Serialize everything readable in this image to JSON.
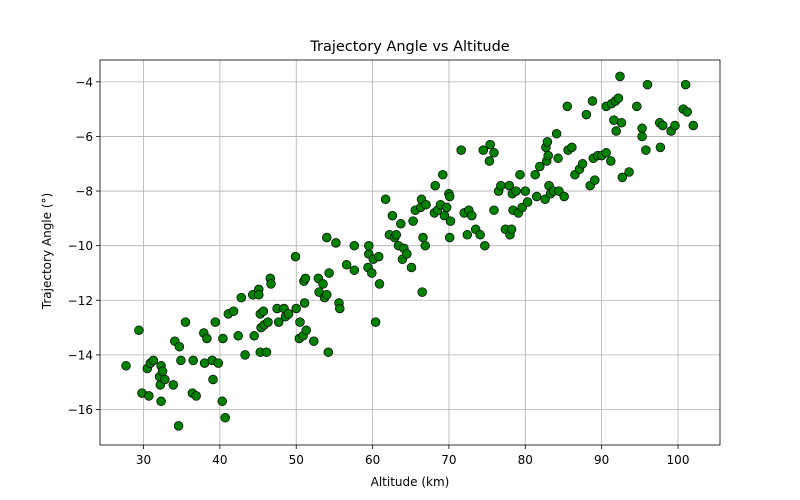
{
  "chart_data": {
    "type": "scatter",
    "title": "Trajectory Angle vs Altitude",
    "xlabel": "Altitude (km)",
    "ylabel": "Trajectory Angle (°)",
    "xlim": [
      24.3,
      105.5
    ],
    "ylim": [
      -17.3,
      -3.2
    ],
    "xticks": [
      30,
      40,
      50,
      60,
      70,
      80,
      90,
      100
    ],
    "yticks": [
      -16,
      -14,
      -12,
      -10,
      -8,
      -6,
      -4
    ],
    "grid": true,
    "marker_color": "#008000",
    "marker_edge_color": "#000000",
    "series": [
      {
        "points": [
          [
            27.7,
            -14.4
          ],
          [
            29.4,
            -13.1
          ],
          [
            29.8,
            -15.4
          ],
          [
            30.5,
            -14.5
          ],
          [
            30.7,
            -15.5
          ],
          [
            30.9,
            -14.3
          ],
          [
            31.3,
            -14.2
          ],
          [
            32.1,
            -14.8
          ],
          [
            32.2,
            -15.1
          ],
          [
            32.3,
            -14.4
          ],
          [
            32.3,
            -15.7
          ],
          [
            32.5,
            -14.6
          ],
          [
            32.8,
            -14.9
          ],
          [
            33.9,
            -15.1
          ],
          [
            34.1,
            -13.5
          ],
          [
            34.6,
            -16.6
          ],
          [
            34.7,
            -13.7
          ],
          [
            34.9,
            -14.2
          ],
          [
            35.5,
            -12.8
          ],
          [
            36.4,
            -15.4
          ],
          [
            36.5,
            -14.2
          ],
          [
            36.9,
            -15.5
          ],
          [
            37.9,
            -13.2
          ],
          [
            38.0,
            -14.3
          ],
          [
            38.3,
            -13.4
          ],
          [
            39.0,
            -14.2
          ],
          [
            39.1,
            -14.9
          ],
          [
            39.4,
            -12.8
          ],
          [
            39.8,
            -14.3
          ],
          [
            40.3,
            -15.7
          ],
          [
            40.4,
            -13.4
          ],
          [
            40.7,
            -16.3
          ],
          [
            41.1,
            -12.5
          ],
          [
            41.8,
            -12.4
          ],
          [
            42.4,
            -13.3
          ],
          [
            42.8,
            -11.9
          ],
          [
            43.3,
            -14.0
          ],
          [
            44.3,
            -11.8
          ],
          [
            44.5,
            -13.3
          ],
          [
            45.1,
            -11.6
          ],
          [
            45.1,
            -11.8
          ],
          [
            45.3,
            -13.9
          ],
          [
            45.3,
            -12.5
          ],
          [
            45.4,
            -13.0
          ],
          [
            45.7,
            -12.4
          ],
          [
            45.8,
            -12.9
          ],
          [
            46.1,
            -13.9
          ],
          [
            46.3,
            -12.8
          ],
          [
            46.6,
            -11.2
          ],
          [
            46.7,
            -11.4
          ],
          [
            47.5,
            -12.3
          ],
          [
            47.7,
            -12.8
          ],
          [
            48.4,
            -12.3
          ],
          [
            48.6,
            -12.6
          ],
          [
            49.0,
            -12.5
          ],
          [
            49.9,
            -10.4
          ],
          [
            50.0,
            -12.3
          ],
          [
            50.4,
            -13.4
          ],
          [
            50.5,
            -12.8
          ],
          [
            50.9,
            -13.3
          ],
          [
            51.0,
            -11.3
          ],
          [
            51.1,
            -12.1
          ],
          [
            51.2,
            -11.2
          ],
          [
            51.3,
            -13.1
          ],
          [
            52.3,
            -13.5
          ],
          [
            52.9,
            -11.2
          ],
          [
            53.0,
            -11.7
          ],
          [
            53.5,
            -11.4
          ],
          [
            53.7,
            -11.9
          ],
          [
            54.0,
            -11.8
          ],
          [
            54.0,
            -9.7
          ],
          [
            54.2,
            -13.9
          ],
          [
            54.3,
            -11.0
          ],
          [
            55.2,
            -9.9
          ],
          [
            55.6,
            -12.1
          ],
          [
            55.7,
            -12.3
          ],
          [
            56.6,
            -10.7
          ],
          [
            57.6,
            -10.0
          ],
          [
            57.6,
            -10.9
          ],
          [
            59.4,
            -10.8
          ],
          [
            59.5,
            -10.3
          ],
          [
            59.5,
            -10.0
          ],
          [
            59.9,
            -11.0
          ],
          [
            60.1,
            -10.5
          ],
          [
            60.4,
            -12.8
          ],
          [
            60.8,
            -10.4
          ],
          [
            60.9,
            -11.4
          ],
          [
            61.7,
            -8.3
          ],
          [
            62.2,
            -9.6
          ],
          [
            62.6,
            -8.9
          ],
          [
            62.9,
            -9.7
          ],
          [
            63.1,
            -9.6
          ],
          [
            63.4,
            -10.0
          ],
          [
            63.7,
            -9.2
          ],
          [
            63.9,
            -10.5
          ],
          [
            64.1,
            -10.1
          ],
          [
            64.5,
            -10.3
          ],
          [
            65.1,
            -10.8
          ],
          [
            65.3,
            -9.1
          ],
          [
            65.6,
            -8.7
          ],
          [
            66.3,
            -8.6
          ],
          [
            66.4,
            -8.3
          ],
          [
            66.5,
            -11.7
          ],
          [
            66.6,
            -9.7
          ],
          [
            66.9,
            -10.0
          ],
          [
            67.0,
            -8.5
          ],
          [
            68.1,
            -8.8
          ],
          [
            68.2,
            -7.8
          ],
          [
            68.5,
            -8.7
          ],
          [
            68.9,
            -8.5
          ],
          [
            69.2,
            -7.4
          ],
          [
            69.4,
            -8.9
          ],
          [
            69.7,
            -8.6
          ],
          [
            70.0,
            -8.1
          ],
          [
            70.1,
            -8.2
          ],
          [
            70.1,
            -9.7
          ],
          [
            70.2,
            -9.1
          ],
          [
            71.6,
            -6.5
          ],
          [
            72.0,
            -8.8
          ],
          [
            72.4,
            -9.6
          ],
          [
            72.6,
            -8.7
          ],
          [
            73.0,
            -8.9
          ],
          [
            73.5,
            -9.4
          ],
          [
            74.1,
            -9.6
          ],
          [
            74.5,
            -6.5
          ],
          [
            74.7,
            -10.0
          ],
          [
            75.3,
            -6.9
          ],
          [
            75.4,
            -6.3
          ],
          [
            75.9,
            -6.6
          ],
          [
            75.9,
            -8.7
          ],
          [
            76.5,
            -8.0
          ],
          [
            76.8,
            -7.8
          ],
          [
            77.4,
            -9.4
          ],
          [
            77.9,
            -7.8
          ],
          [
            78.0,
            -9.6
          ],
          [
            78.2,
            -9.4
          ],
          [
            78.3,
            -8.1
          ],
          [
            78.4,
            -8.7
          ],
          [
            78.8,
            -8.0
          ],
          [
            79.1,
            -8.8
          ],
          [
            79.3,
            -7.4
          ],
          [
            79.6,
            -8.6
          ],
          [
            80.0,
            -8.0
          ],
          [
            80.3,
            -8.4
          ],
          [
            81.3,
            -7.4
          ],
          [
            81.5,
            -8.2
          ],
          [
            81.9,
            -7.1
          ],
          [
            82.6,
            -8.3
          ],
          [
            82.7,
            -6.4
          ],
          [
            82.8,
            -6.9
          ],
          [
            82.9,
            -6.2
          ],
          [
            83.0,
            -6.7
          ],
          [
            83.1,
            -7.8
          ],
          [
            83.3,
            -8.1
          ],
          [
            83.7,
            -8.0
          ],
          [
            84.1,
            -5.9
          ],
          [
            84.3,
            -6.8
          ],
          [
            84.4,
            -8.0
          ],
          [
            85.1,
            -8.2
          ],
          [
            85.5,
            -4.9
          ],
          [
            85.6,
            -6.5
          ],
          [
            86.1,
            -6.4
          ],
          [
            86.5,
            -7.4
          ],
          [
            87.1,
            -7.2
          ],
          [
            87.5,
            -7.0
          ],
          [
            88.0,
            -5.2
          ],
          [
            88.5,
            -7.8
          ],
          [
            88.8,
            -4.7
          ],
          [
            88.9,
            -6.8
          ],
          [
            89.1,
            -7.6
          ],
          [
            89.5,
            -6.7
          ],
          [
            90.0,
            -6.7
          ],
          [
            90.6,
            -6.6
          ],
          [
            90.6,
            -4.9
          ],
          [
            91.2,
            -6.9
          ],
          [
            91.3,
            -4.8
          ],
          [
            91.6,
            -5.4
          ],
          [
            91.8,
            -4.7
          ],
          [
            91.9,
            -5.8
          ],
          [
            92.2,
            -4.6
          ],
          [
            92.4,
            -3.8
          ],
          [
            92.6,
            -5.5
          ],
          [
            92.7,
            -7.5
          ],
          [
            93.6,
            -7.3
          ],
          [
            94.6,
            -4.9
          ],
          [
            95.3,
            -5.7
          ],
          [
            95.3,
            -6.0
          ],
          [
            95.8,
            -6.5
          ],
          [
            96.0,
            -4.1
          ],
          [
            97.6,
            -5.5
          ],
          [
            97.7,
            -6.4
          ],
          [
            98.0,
            -5.6
          ],
          [
            99.1,
            -5.8
          ],
          [
            99.6,
            -5.6
          ],
          [
            100.7,
            -5.0
          ],
          [
            101.0,
            -4.1
          ],
          [
            101.2,
            -5.1
          ],
          [
            102.0,
            -5.6
          ]
        ]
      }
    ]
  }
}
